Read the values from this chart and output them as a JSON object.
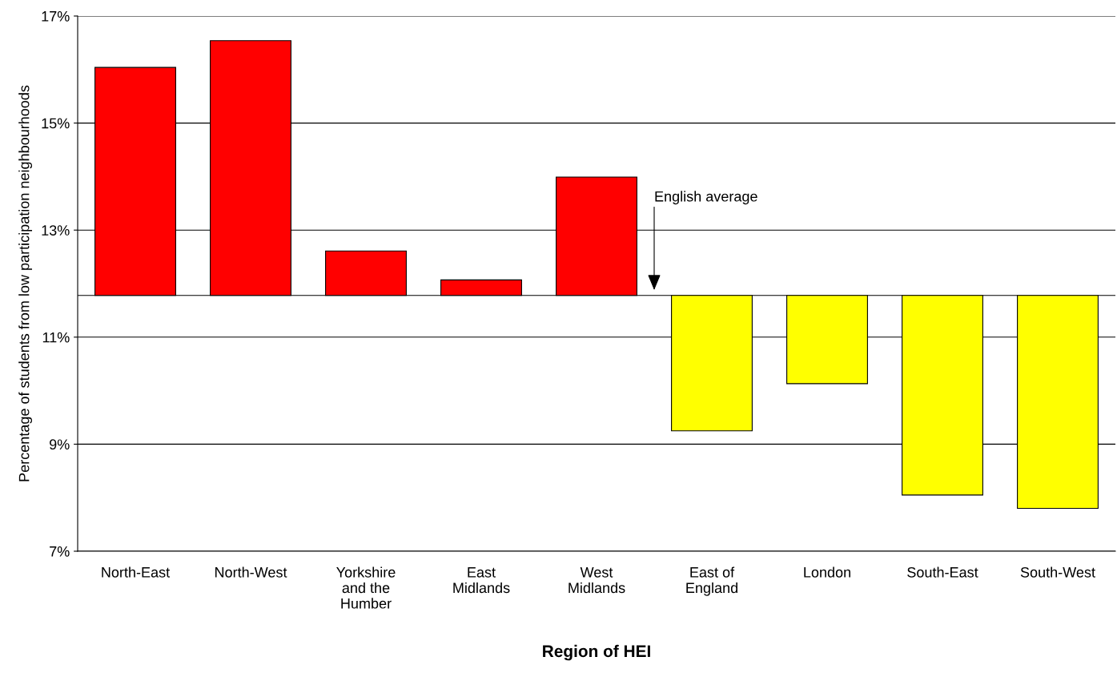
{
  "chart_data": {
    "type": "bar",
    "xlabel": "Region of HEI",
    "ylabel": "Percentage of students from low participation neighbourhoods",
    "categories": [
      "North-East",
      "North-West",
      "Yorkshire\nand the\nHumber",
      "East\nMidlands",
      "West\nMidlands",
      "East of\nEngland",
      "London",
      "South-East",
      "South-West"
    ],
    "base": [
      11.78,
      11.78,
      11.78,
      11.78,
      11.78,
      11.78,
      11.78,
      11.78,
      11.78
    ],
    "values": [
      4.26,
      4.76,
      0.83,
      0.29,
      2.21,
      -2.53,
      -1.65,
      -3.73,
      -3.98
    ],
    "colors": [
      "#ff0000",
      "#ff0000",
      "#ff0000",
      "#ff0000",
      "#ff0000",
      "#ffff00",
      "#ffff00",
      "#ffff00",
      "#ffff00"
    ],
    "ylim": [
      7,
      17
    ],
    "yticks": [
      {
        "value": 7,
        "label": "7%"
      },
      {
        "value": 9,
        "label": "9%"
      },
      {
        "value": 11,
        "label": "11%"
      },
      {
        "value": 13,
        "label": "13%"
      },
      {
        "value": 15,
        "label": "15%"
      },
      {
        "value": 17,
        "label": "17%"
      }
    ],
    "ref_lines": [
      {
        "axis": "y",
        "value": 11.78,
        "label": "English average",
        "color": "#000000"
      }
    ],
    "grid": "y",
    "legend": false
  }
}
